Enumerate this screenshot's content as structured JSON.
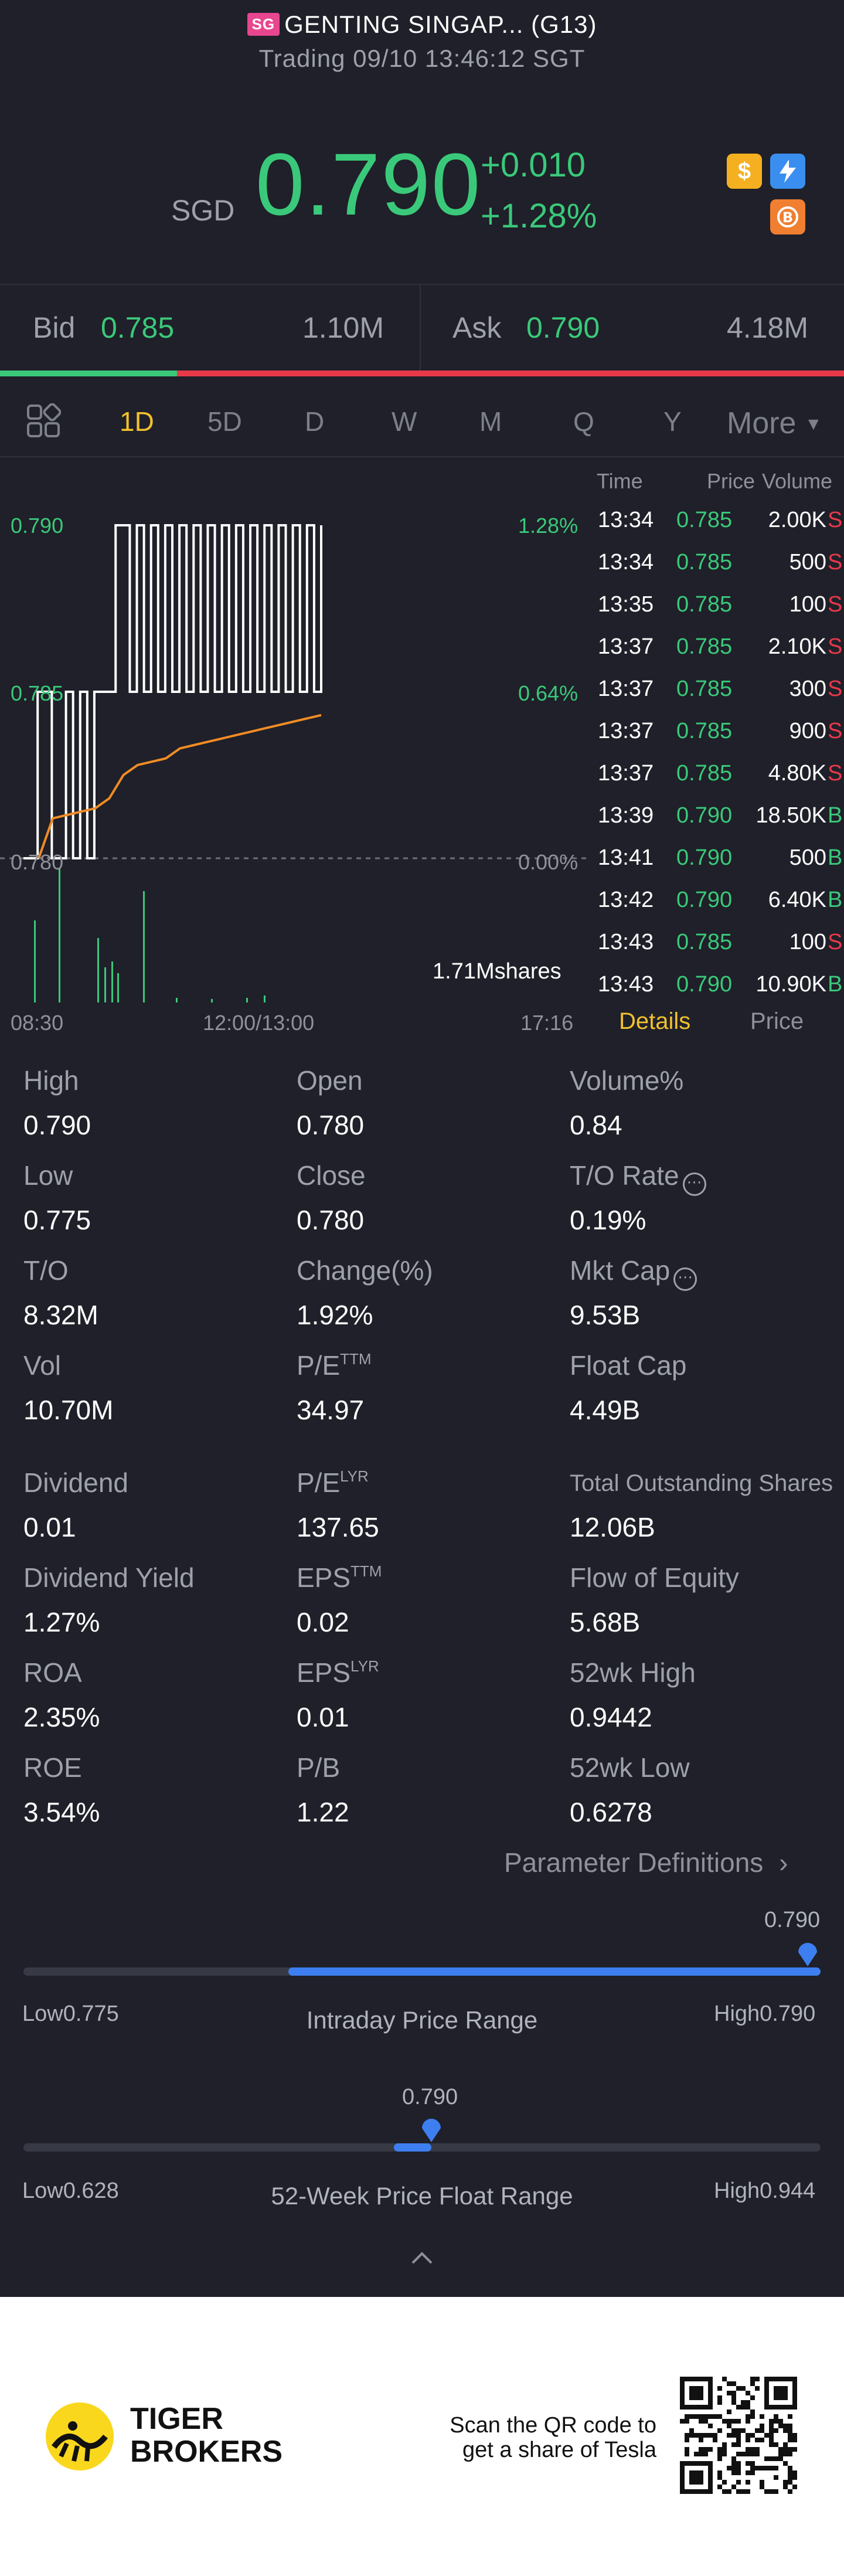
{
  "header": {
    "market_badge": "SG",
    "title": "GENTING SINGAP... (G13)",
    "status": "Trading 09/10 13:46:12 SGT",
    "currency": "SGD",
    "price": "0.790",
    "change": "+0.010",
    "change_pct": "+1.28%",
    "colors": {
      "up": "#3ac97a",
      "down": "#e8394a",
      "accent": "#f2c12e"
    }
  },
  "bidask": {
    "bid_label": "Bid",
    "bid_price": "0.785",
    "bid_vol": "1.10M",
    "ask_label": "Ask",
    "ask_price": "0.790",
    "ask_vol": "4.18M",
    "bid_ratio": 0.21
  },
  "tabs": [
    "1D",
    "5D",
    "D",
    "W",
    "M",
    "Q",
    "Y",
    "More"
  ],
  "active_tab": "1D",
  "chart_data": {
    "type": "line",
    "y_left_ticks": [
      "0.790",
      "0.785",
      "0.780"
    ],
    "y_right_ticks": [
      "1.28%",
      "0.64%",
      "0.00%"
    ],
    "x_ticks": [
      "08:30",
      "12:00/13:00",
      "17:16"
    ],
    "volume_label": "1.71Mshares",
    "ylim": [
      0.78,
      0.79
    ],
    "price_series": [
      0.78,
      0.78,
      0.785,
      0.785,
      0.78,
      0.78,
      0.785,
      0.78,
      0.785,
      0.78,
      0.785,
      0.785,
      0.785,
      0.79,
      0.79,
      0.785,
      0.79,
      0.785,
      0.79,
      0.785,
      0.79,
      0.785,
      0.79,
      0.785,
      0.79,
      0.785,
      0.79,
      0.785,
      0.79,
      0.785,
      0.79,
      0.785,
      0.79,
      0.785,
      0.79,
      0.785,
      0.79,
      0.785,
      0.79,
      0.785,
      0.79,
      0.785,
      0.79
    ],
    "avg_series": [
      0.78,
      0.7812,
      0.7813,
      0.7814,
      0.7815,
      0.7818,
      0.7825,
      0.7828,
      0.7829,
      0.783,
      0.7833,
      0.7834,
      0.7835,
      0.7836,
      0.7837,
      0.7838,
      0.7839,
      0.784,
      0.7841,
      0.7842,
      0.7843
    ]
  },
  "trades": {
    "headers": {
      "time": "Time",
      "price": "Price",
      "volume": "Volume"
    },
    "rows": [
      {
        "time": "13:34",
        "price": "0.785",
        "vol": "2.00K",
        "side": "S"
      },
      {
        "time": "13:34",
        "price": "0.785",
        "vol": "500",
        "side": "S"
      },
      {
        "time": "13:35",
        "price": "0.785",
        "vol": "100",
        "side": "S"
      },
      {
        "time": "13:37",
        "price": "0.785",
        "vol": "2.10K",
        "side": "S"
      },
      {
        "time": "13:37",
        "price": "0.785",
        "vol": "300",
        "side": "S"
      },
      {
        "time": "13:37",
        "price": "0.785",
        "vol": "900",
        "side": "S"
      },
      {
        "time": "13:37",
        "price": "0.785",
        "vol": "4.80K",
        "side": "S"
      },
      {
        "time": "13:39",
        "price": "0.790",
        "vol": "18.50K",
        "side": "B"
      },
      {
        "time": "13:41",
        "price": "0.790",
        "vol": "500",
        "side": "B"
      },
      {
        "time": "13:42",
        "price": "0.790",
        "vol": "6.40K",
        "side": "B"
      },
      {
        "time": "13:43",
        "price": "0.785",
        "vol": "100",
        "side": "S"
      },
      {
        "time": "13:43",
        "price": "0.790",
        "vol": "10.90K",
        "side": "B"
      }
    ],
    "tab_details": "Details",
    "tab_price": "Price"
  },
  "stats": {
    "high_l": "High",
    "high": "0.790",
    "open_l": "Open",
    "open": "0.780",
    "volpct_l": "Volume%",
    "volpct": "0.84",
    "low_l": "Low",
    "low": "0.775",
    "close_l": "Close",
    "close": "0.780",
    "to_rate_l": "T/O Rate",
    "to_rate": "0.19%",
    "to_l": "T/O",
    "to": "8.32M",
    "chg_l": "Change(%)",
    "chg": "1.92%",
    "mktcap_l": "Mkt Cap",
    "mktcap": "9.53B",
    "vol_l": "Vol",
    "vol": "10.70M",
    "pe_l": "P/E",
    "pe_sup": "TTM",
    "pe": "34.97",
    "floatcap_l": "Float Cap",
    "floatcap": "4.49B",
    "div_l": "Dividend",
    "div": "0.01",
    "pelyr_l": "P/E",
    "pelyr_sup": "LYR",
    "pelyr": "137.65",
    "tos_l": "Total Outstanding Shares",
    "tos": "12.06B",
    "dy_l": "Dividend Yield",
    "dy": "1.27%",
    "eps_l": "EPS",
    "eps_sup": "TTM",
    "eps": "0.02",
    "foe_l": "Flow of Equity",
    "foe": "5.68B",
    "roa_l": "ROA",
    "roa": "2.35%",
    "epslyr_l": "EPS",
    "epslyr_sup": "LYR",
    "epslyr": "0.01",
    "h52_l": "52wk High",
    "h52": "0.9442",
    "roe_l": "ROE",
    "roe": "3.54%",
    "pb_l": "P/B",
    "pb": "1.22",
    "l52_l": "52wk Low",
    "l52": "0.6278",
    "param_def": "Parameter Definitions"
  },
  "ranges": {
    "intraday": {
      "title": "Intraday Price Range",
      "low_label": "Low",
      "low": "0.775",
      "high_label": "High",
      "high": "0.790",
      "current": "0.790",
      "fill_start": 0.0,
      "position": 1.0
    },
    "week52": {
      "title": "52-Week Price Float Range",
      "low_label": "Low",
      "low": "0.628",
      "high_label": "High",
      "high": "0.944",
      "current": "0.790",
      "position": 0.51
    }
  },
  "footer": {
    "brand_line1": "TIGER",
    "brand_line2": "BROKERS",
    "scan_line1": "Scan the QR code to",
    "scan_line2": "get a share of Tesla"
  }
}
